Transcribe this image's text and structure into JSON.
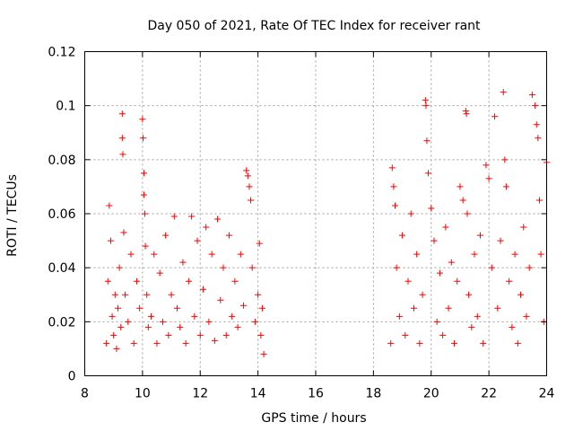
{
  "chart_data": {
    "type": "scatter",
    "title": "Day 050 of 2021, Rate Of TEC Index for receiver rant",
    "xlabel": "GPS time / hours",
    "ylabel": "ROTI / TECUs",
    "xlim": [
      8,
      24
    ],
    "ylim": [
      0,
      0.12
    ],
    "xticks": [
      "8",
      "10",
      "12",
      "14",
      "16",
      "18",
      "20",
      "22",
      "24"
    ],
    "yticks": [
      "0",
      "0.02",
      "0.04",
      "0.06",
      "0.08",
      "0.1",
      "0.12"
    ],
    "grid": true,
    "marker": "+",
    "color": "#ff0000",
    "series": [
      {
        "x": [
          8.75,
          8.8,
          8.85,
          8.9,
          8.95,
          9.0,
          9.05,
          9.1,
          9.15,
          9.2,
          9.25,
          9.3,
          9.3,
          9.32,
          9.35,
          9.4,
          9.5,
          9.6,
          9.7,
          9.8,
          9.9,
          10.0,
          10.02,
          10.05,
          10.05,
          10.08,
          10.1,
          10.15,
          10.2,
          10.3,
          10.4,
          10.5,
          10.6,
          10.7,
          10.8,
          10.9,
          11.0,
          11.1,
          11.2,
          11.3,
          11.4,
          11.5,
          11.6,
          11.7,
          11.8,
          11.9,
          12.0,
          12.1,
          12.2,
          12.3,
          12.4,
          12.5,
          12.6,
          12.7,
          12.8,
          12.9,
          13.0,
          13.1,
          13.2,
          13.3,
          13.4,
          13.5,
          13.6,
          13.65,
          13.7,
          13.75,
          13.8,
          13.9,
          14.0,
          14.05,
          14.1,
          14.15,
          14.2
        ],
        "y": [
          0.012,
          0.035,
          0.063,
          0.05,
          0.022,
          0.015,
          0.03,
          0.01,
          0.025,
          0.04,
          0.018,
          0.097,
          0.088,
          0.082,
          0.053,
          0.03,
          0.02,
          0.045,
          0.012,
          0.035,
          0.025,
          0.095,
          0.088,
          0.075,
          0.067,
          0.06,
          0.048,
          0.03,
          0.018,
          0.022,
          0.045,
          0.012,
          0.038,
          0.02,
          0.052,
          0.015,
          0.03,
          0.059,
          0.025,
          0.018,
          0.042,
          0.012,
          0.035,
          0.059,
          0.022,
          0.05,
          0.015,
          0.032,
          0.055,
          0.02,
          0.045,
          0.013,
          0.058,
          0.028,
          0.04,
          0.015,
          0.052,
          0.022,
          0.035,
          0.018,
          0.045,
          0.026,
          0.076,
          0.074,
          0.07,
          0.065,
          0.04,
          0.02,
          0.03,
          0.049,
          0.015,
          0.025,
          0.008
        ]
      },
      {
        "x": [
          18.6,
          18.65,
          18.7,
          18.75,
          18.8,
          18.9,
          19.0,
          19.1,
          19.2,
          19.3,
          19.4,
          19.5,
          19.6,
          19.7,
          19.8,
          19.82,
          19.85,
          19.9,
          20.0,
          20.1,
          20.2,
          20.3,
          20.4,
          20.5,
          20.6,
          20.7,
          20.8,
          20.9,
          21.0,
          21.1,
          21.2,
          21.22,
          21.25,
          21.3,
          21.4,
          21.5,
          21.6,
          21.7,
          21.8,
          21.9,
          22.0,
          22.1,
          22.2,
          22.3,
          22.4,
          22.5,
          22.55,
          22.6,
          22.7,
          22.8,
          22.9,
          23.0,
          23.1,
          23.2,
          23.3,
          23.4,
          23.5,
          23.6,
          23.65,
          23.7,
          23.75,
          23.8,
          23.9,
          24.0
        ],
        "y": [
          0.012,
          0.077,
          0.07,
          0.063,
          0.04,
          0.022,
          0.052,
          0.015,
          0.035,
          0.06,
          0.025,
          0.045,
          0.012,
          0.03,
          0.102,
          0.1,
          0.087,
          0.075,
          0.062,
          0.05,
          0.02,
          0.038,
          0.015,
          0.055,
          0.025,
          0.042,
          0.012,
          0.035,
          0.07,
          0.065,
          0.098,
          0.097,
          0.06,
          0.03,
          0.018,
          0.045,
          0.022,
          0.052,
          0.012,
          0.078,
          0.073,
          0.04,
          0.096,
          0.025,
          0.05,
          0.105,
          0.08,
          0.07,
          0.035,
          0.018,
          0.045,
          0.012,
          0.03,
          0.055,
          0.022,
          0.04,
          0.104,
          0.1,
          0.093,
          0.088,
          0.065,
          0.045,
          0.02,
          0.079
        ]
      }
    ]
  }
}
